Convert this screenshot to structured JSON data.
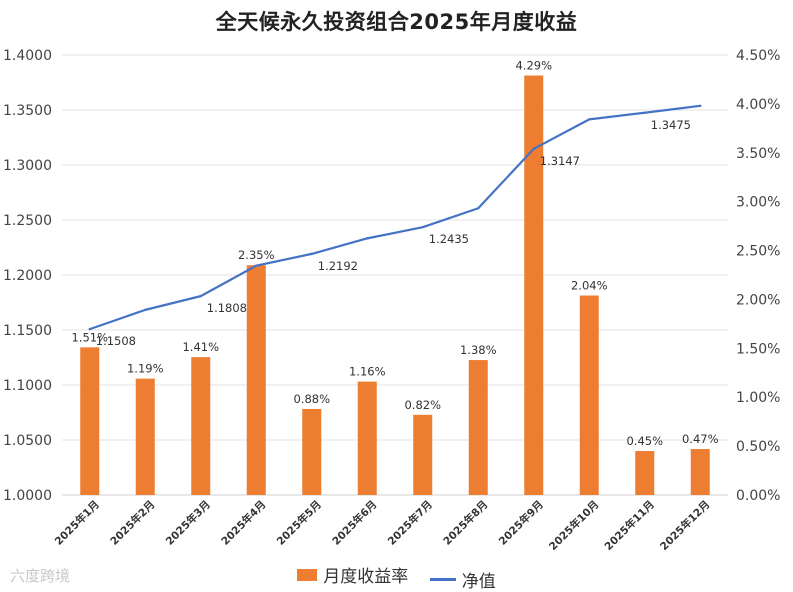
{
  "chart_data": {
    "type": "bar+line",
    "title": "全天候永久投资组合2025年月度收益",
    "categories": [
      "2025年1月",
      "2025年2月",
      "2025年3月",
      "2025年4月",
      "2025年5月",
      "2025年6月",
      "2025年7月",
      "2025年8月",
      "2025年9月",
      "2025年10月",
      "2025年11月",
      "2025年12月"
    ],
    "series": [
      {
        "name": "月度收益率",
        "type": "bar",
        "axis": "right",
        "color": "#ED7D31",
        "values": [
          1.51,
          1.19,
          1.41,
          2.35,
          0.88,
          1.16,
          0.82,
          1.38,
          4.29,
          2.04,
          0.45,
          0.47
        ],
        "labels": [
          "1.51%",
          "1.19%",
          "1.41%",
          "2.35%",
          "0.88%",
          "1.16%",
          "0.82%",
          "1.38%",
          "4.29%",
          "2.04%",
          "0.45%",
          "0.47%"
        ]
      },
      {
        "name": "净值",
        "type": "line",
        "axis": "left",
        "color": "#4472C4",
        "values": [
          1.1508,
          1.1683,
          1.1808,
          1.2085,
          1.2192,
          1.2333,
          1.2435,
          1.2607,
          1.3147,
          1.3415,
          1.3475,
          1.3538
        ],
        "labels": [
          "1.1508",
          "",
          "1.1808",
          "",
          "1.2192",
          "",
          "1.2435",
          "",
          "1.3147",
          "",
          "1.3475",
          ""
        ]
      }
    ],
    "y_left": {
      "ylim": [
        1.0,
        1.4
      ],
      "ticks": [
        "1.0000",
        "1.0500",
        "1.1000",
        "1.1500",
        "1.2000",
        "1.2500",
        "1.3000",
        "1.3500",
        "1.4000"
      ]
    },
    "y_right": {
      "ylim": [
        0,
        4.5
      ],
      "ticks": [
        "0.00%",
        "0.50%",
        "1.00%",
        "1.50%",
        "2.00%",
        "2.50%",
        "3.00%",
        "3.50%",
        "4.00%",
        "4.50%"
      ]
    },
    "grid": true,
    "legend": "bottom"
  },
  "watermark": "六度跨境"
}
